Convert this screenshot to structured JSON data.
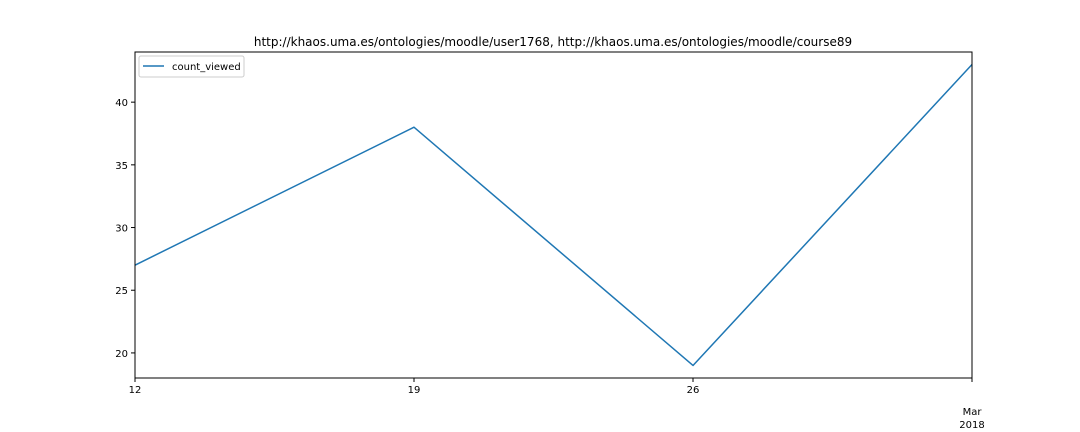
{
  "chart_data": {
    "type": "line",
    "title": "http://khaos.uma.es/ontologies/moodle/user1768, http://khaos.uma.es/ontologies/moodle/course89",
    "xlabel": "",
    "ylabel": "",
    "x": [
      "2018-02-12",
      "2018-02-19",
      "2018-02-26",
      "2018-03-05"
    ],
    "x_ticks": [
      {
        "x": "2018-02-12",
        "label": "12",
        "sublabel": ""
      },
      {
        "x": "2018-02-19",
        "label": "19",
        "sublabel": ""
      },
      {
        "x": "2018-02-26",
        "label": "26",
        "sublabel": ""
      },
      {
        "x": "2018-03-05",
        "label": "Mar",
        "sublabel": "2018"
      }
    ],
    "series": [
      {
        "name": "count_viewed",
        "values": [
          27,
          38,
          19,
          43
        ],
        "color": "#1f77b4"
      }
    ],
    "ylim": [
      18,
      44
    ],
    "y_ticks": [
      20,
      25,
      30,
      35,
      40
    ],
    "grid": false,
    "legend": "top-left"
  }
}
